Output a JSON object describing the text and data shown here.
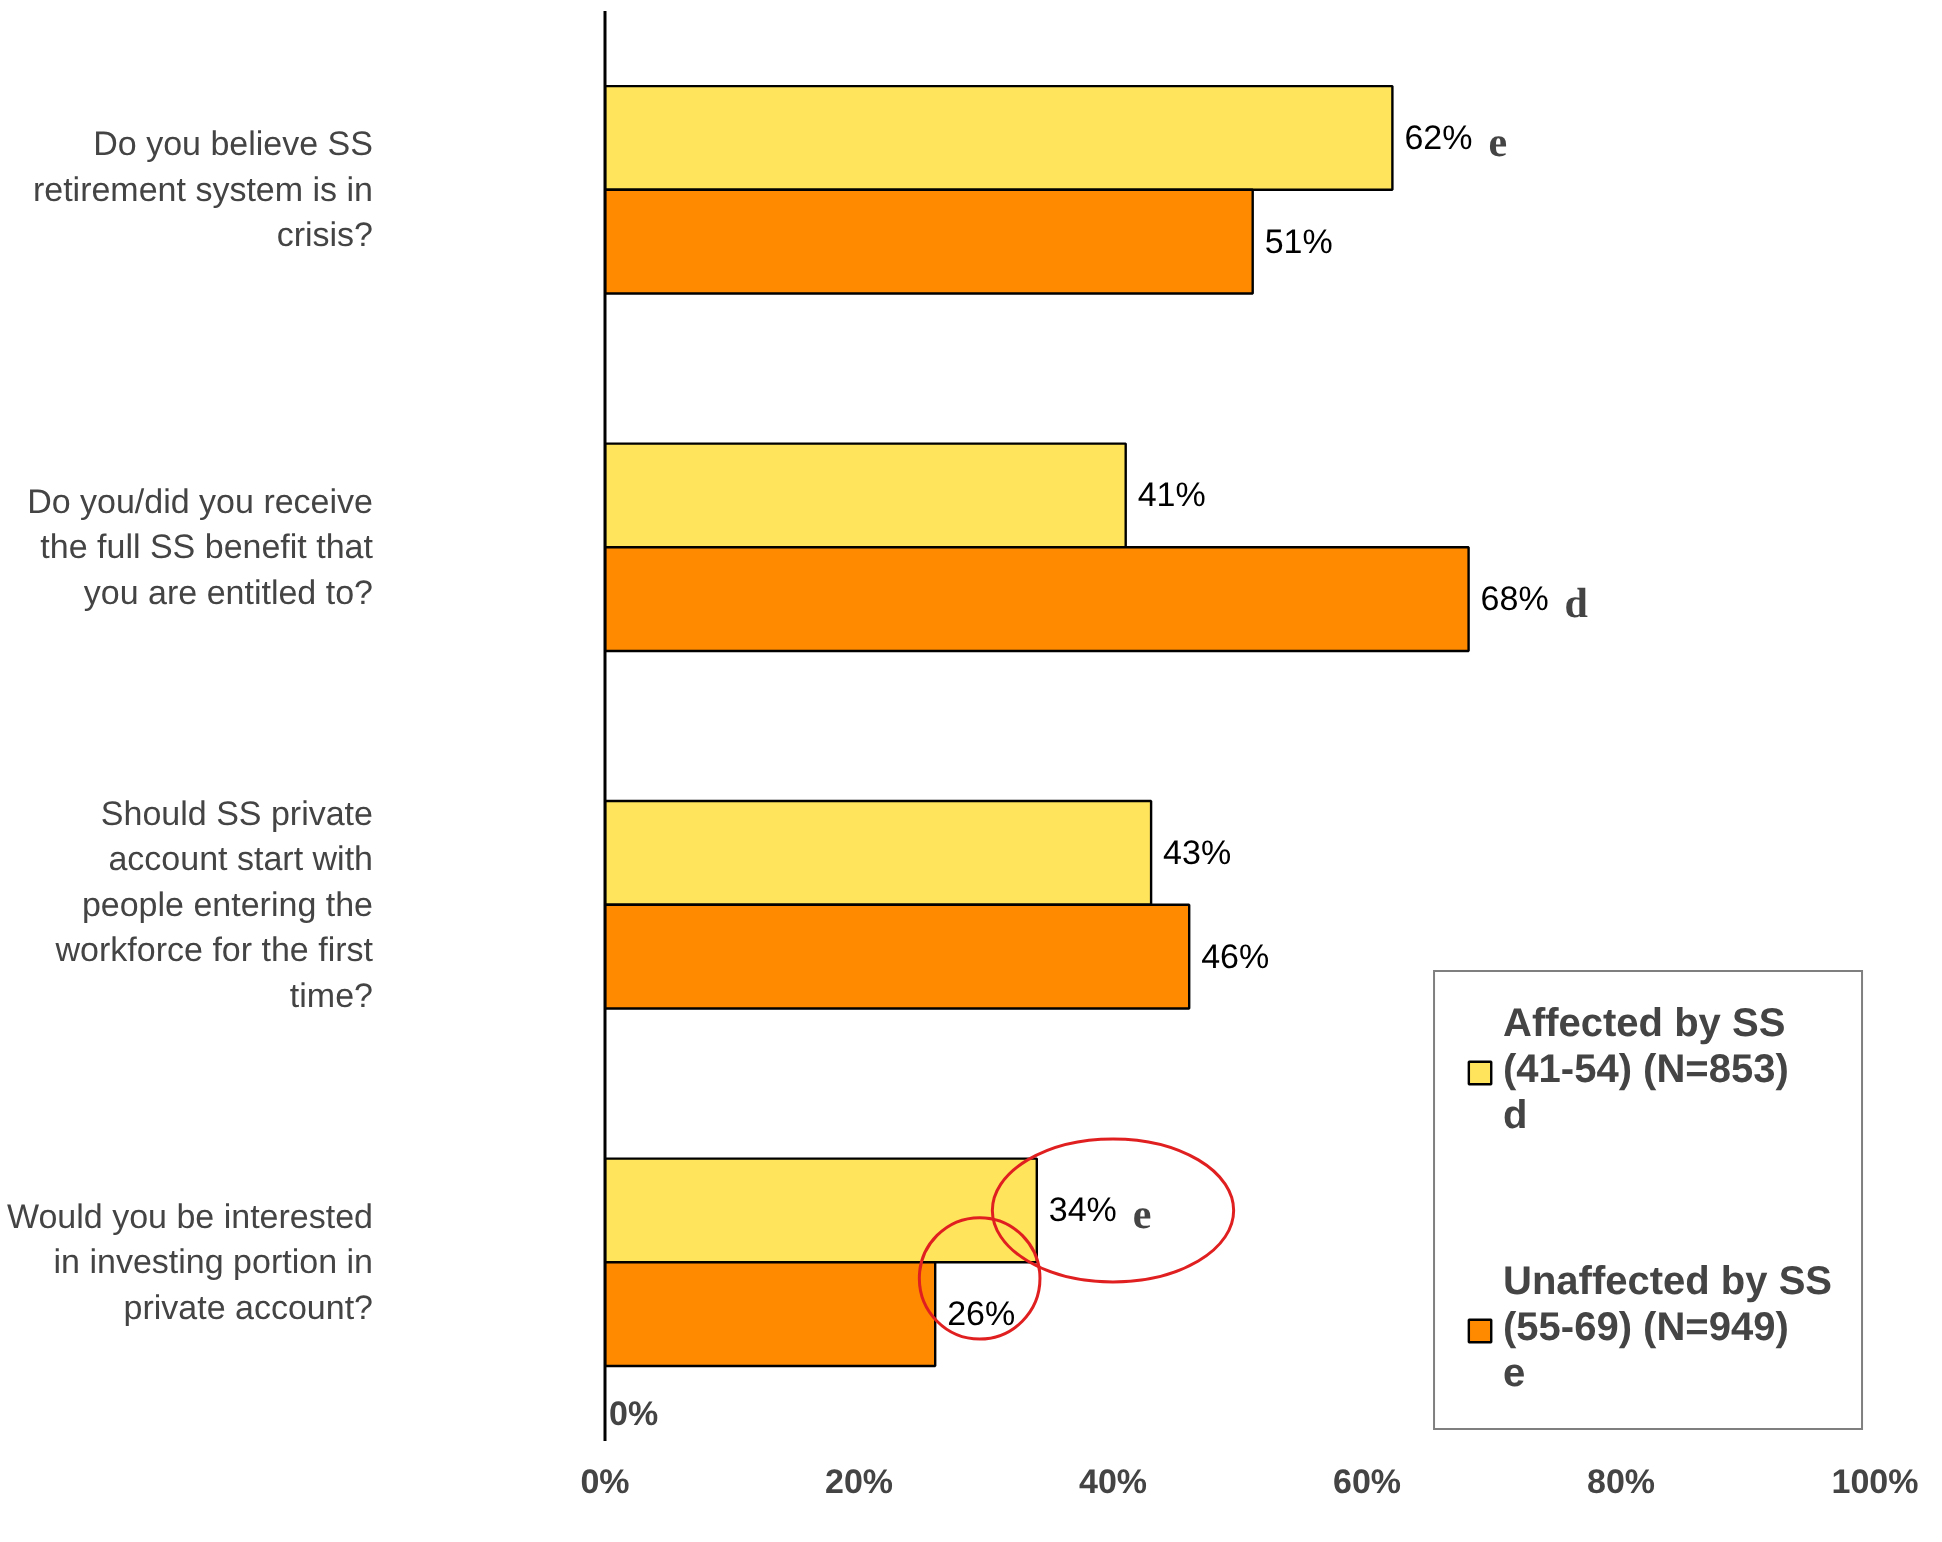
{
  "chart_data": {
    "type": "bar",
    "orientation": "horizontal",
    "categories": [
      "Do you believe SS retirement system is in crisis?",
      "Do you/did you receive the full SS benefit that you are entitled to?",
      "Should SS private account start with people entering the workforce for the first time?",
      "Would you be interested in investing portion in private account?"
    ],
    "series": [
      {
        "name": "Affected by SS (41-54) (N=853) d",
        "color": "#ffe45c",
        "values": [
          62,
          41,
          43,
          34
        ],
        "value_labels": [
          "62%",
          "41%",
          "43%",
          "34%"
        ]
      },
      {
        "name": "Unaffected by SS (55-69) (N=949) e",
        "color": "#ff8a00",
        "values": [
          51,
          68,
          46,
          26
        ],
        "value_labels": [
          "51%",
          "68%",
          "46%",
          "26%"
        ]
      }
    ],
    "xlim": [
      0,
      100
    ],
    "xticks": [
      {
        "value": 0,
        "label": "0%"
      },
      {
        "value": 20,
        "label": "20%"
      },
      {
        "value": 40,
        "label": "40%"
      },
      {
        "value": 60,
        "label": "60%"
      },
      {
        "value": 80,
        "label": "80%"
      },
      {
        "value": 100,
        "label": "100%"
      }
    ],
    "annotations": [
      {
        "text": "e",
        "x": 62,
        "y": "Do you believe SS retirement system is in crisis?"
      },
      {
        "text": "d",
        "x": 68,
        "y": "Do you/did you receive the full SS benefit that you are entitled to?"
      },
      {
        "text": "e",
        "x": 34,
        "y": "Would you be interested in investing portion in private account?"
      },
      "0%"
    ],
    "grid": false,
    "legend": "bottom right"
  }
}
